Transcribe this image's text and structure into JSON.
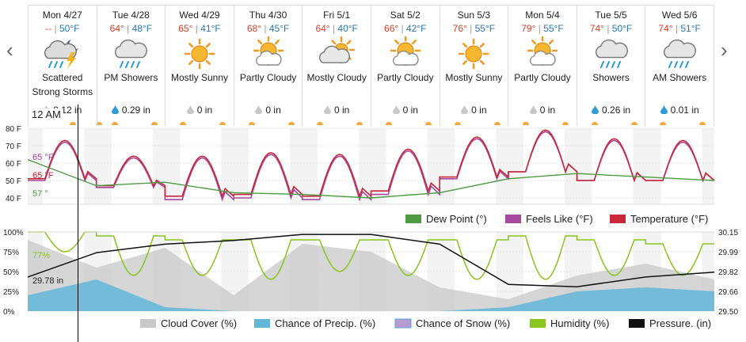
{
  "nav": {
    "prev": "‹",
    "next": "›"
  },
  "current_time": "12 AM",
  "days": [
    {
      "date": "Mon 4/27",
      "hi": "--",
      "lo": "50°F",
      "icon": "thunderstorm-night-icon",
      "cond": "Scattered Strong Storms",
      "precip": "0.12 in",
      "drop": "gray"
    },
    {
      "date": "Tue 4/28",
      "hi": "64°",
      "lo": "48°F",
      "icon": "rain-icon",
      "cond": "PM Showers",
      "precip": "0.29 in",
      "drop": "blue"
    },
    {
      "date": "Wed 4/29",
      "hi": "65°",
      "lo": "41°F",
      "icon": "sun-icon",
      "cond": "Mostly Sunny",
      "precip": "0 in",
      "drop": "gray"
    },
    {
      "date": "Thu 4/30",
      "hi": "68°",
      "lo": "45°F",
      "icon": "partly-cloudy-icon",
      "cond": "Partly Cloudy",
      "precip": "0 in",
      "drop": "gray"
    },
    {
      "date": "Fri 5/1",
      "hi": "64°",
      "lo": "40°F",
      "icon": "mostly-cloudy-icon",
      "cond": "Mostly Cloudy",
      "precip": "0 in",
      "drop": "gray"
    },
    {
      "date": "Sat 5/2",
      "hi": "66°",
      "lo": "42°F",
      "icon": "partly-cloudy-icon",
      "cond": "Partly Cloudy",
      "precip": "0 in",
      "drop": "gray"
    },
    {
      "date": "Sun 5/3",
      "hi": "76°",
      "lo": "55°F",
      "icon": "sun-icon",
      "cond": "Mostly Sunny",
      "precip": "0 in",
      "drop": "gray"
    },
    {
      "date": "Mon 5/4",
      "hi": "79°",
      "lo": "55°F",
      "icon": "partly-cloudy-icon",
      "cond": "Partly Cloudy",
      "precip": "0 in",
      "drop": "gray"
    },
    {
      "date": "Tue 5/5",
      "hi": "74°",
      "lo": "50°F",
      "icon": "rain-icon",
      "cond": "Showers",
      "precip": "0.26 in",
      "drop": "blue"
    },
    {
      "date": "Wed 5/6",
      "hi": "74°",
      "lo": "51°F",
      "icon": "rain-icon",
      "cond": "AM Showers",
      "precip": "0.01 in",
      "drop": "blue"
    }
  ],
  "colors": {
    "temperature": "#c9283a",
    "feels_like": "#a64aa0",
    "dew_point": "#4f9a44",
    "humidity": "#8ac41f",
    "pressure": "#111111",
    "cloud": "#c8c8c8",
    "precip": "#62b6d8"
  },
  "chart_data": [
    {
      "type": "line",
      "title": "",
      "ylim": [
        40,
        80
      ],
      "yticks": [
        "80 F",
        "70 F",
        "60 F",
        "50 F",
        "40 F"
      ],
      "current": {
        "feels_like": "65 °F",
        "temperature": "65 °F",
        "dew_point": "57 °"
      },
      "series": [
        {
          "name": "Temperature (°F)",
          "peaks": [
            73,
            64,
            64,
            66,
            65,
            68,
            75,
            79,
            74,
            73
          ],
          "troughs": [
            51,
            47,
            41,
            42,
            41,
            44,
            52,
            55,
            50,
            50
          ]
        },
        {
          "name": "Feels Like (°F)",
          "peaks": [
            72,
            63,
            63,
            65,
            64,
            67,
            74,
            78,
            73,
            72
          ],
          "troughs": [
            50,
            46,
            39,
            40,
            39,
            42,
            51,
            55,
            50,
            50
          ]
        },
        {
          "name": "Dew Point (°)",
          "values_per_day": [
            62,
            47,
            49,
            43,
            42,
            40,
            43,
            51,
            54,
            52,
            50
          ]
        }
      ],
      "legend": [
        "Dew Point (°)",
        "Feels Like (°F)",
        "Temperature (°F)"
      ]
    },
    {
      "type": "area",
      "ylim": [
        0,
        100
      ],
      "yticks_left": [
        "100%",
        "75%",
        "50%",
        "25%",
        "0%"
      ],
      "yticks_right": [
        "30.15",
        "29.99",
        "29.82",
        "29.66",
        "29.50"
      ],
      "current": {
        "humidity": "77%",
        "pressure": "29.78 in"
      },
      "series": [
        {
          "name": "Cloud Cover (%)",
          "values_per_day": [
            90,
            55,
            80,
            20,
            85,
            75,
            30,
            15,
            45,
            60,
            40
          ]
        },
        {
          "name": "Chance of Precip. (%)",
          "values_per_day": [
            20,
            40,
            5,
            0,
            0,
            0,
            0,
            5,
            25,
            30,
            25
          ]
        },
        {
          "name": "Chance of Snow (%)",
          "values_per_day": [
            0,
            0,
            0,
            0,
            0,
            0,
            0,
            0,
            0,
            0,
            0
          ]
        },
        {
          "name": "Humidity (%)",
          "troughs": [
            75,
            45,
            45,
            40,
            50,
            45,
            40,
            40,
            45,
            45
          ],
          "peaks": [
            100,
            95,
            90,
            90,
            90,
            90,
            90,
            95,
            90,
            85
          ]
        },
        {
          "name": "Pressure. (in)",
          "values_per_day": [
            29.78,
            29.98,
            30.05,
            30.08,
            30.13,
            30.13,
            30.05,
            29.72,
            29.7,
            29.78,
            29.82
          ]
        }
      ],
      "legend": [
        "Cloud Cover (%)",
        "Chance of Precip. (%)",
        "Chance of Snow (%)",
        "Humidity (%)",
        "Pressure. (in)"
      ]
    }
  ]
}
